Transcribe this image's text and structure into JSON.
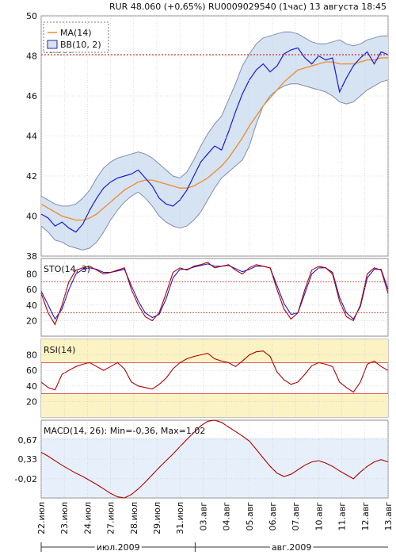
{
  "header": "RUR 48.060 (+0,65%)    RU0009029540 (1час) 13 августа 18:45",
  "colors": {
    "price": "#1a1ad8",
    "ma": "#f08a2c",
    "band_fill": "#d6e3f2",
    "band_edge": "#7f8ea6",
    "osc": "#b00000",
    "stoch_d": "#1a1ad8",
    "level": "#cc0000",
    "rsi_band": "#fbf3c4",
    "macd_fill": "#e7f0fa",
    "grid": "#c8c8c8"
  },
  "chart_data": [
    {
      "type": "line",
      "panel": "price",
      "ylim": [
        38,
        50
      ],
      "yticks": [
        "38",
        "40",
        "42",
        "44",
        "46",
        "48",
        "50"
      ],
      "last_price_label": "48.060",
      "last_price": 48.06,
      "legend": [
        "MA(14)",
        "BB(10, 2)"
      ],
      "series": [
        {
          "name": "price",
          "values": [
            40.1,
            39.9,
            39.5,
            39.7,
            39.4,
            39.2,
            39.6,
            40.3,
            40.9,
            41.4,
            41.7,
            41.9,
            42.0,
            42.1,
            42.3,
            41.9,
            41.5,
            40.9,
            40.6,
            40.5,
            40.8,
            41.3,
            42.0,
            42.7,
            43.1,
            43.5,
            43.3,
            44.2,
            45.2,
            46.1,
            46.8,
            47.3,
            47.6,
            47.2,
            47.5,
            48.1,
            48.3,
            48.4,
            47.9,
            47.6,
            48.0,
            47.8,
            47.9,
            46.2,
            46.9,
            47.5,
            47.9,
            48.2,
            47.6,
            48.2,
            48.06
          ]
        },
        {
          "name": "MA(14)",
          "values": [
            40.6,
            40.4,
            40.2,
            40.0,
            39.9,
            39.8,
            39.8,
            39.9,
            40.1,
            40.4,
            40.7,
            41.0,
            41.3,
            41.5,
            41.7,
            41.8,
            41.8,
            41.7,
            41.6,
            41.5,
            41.4,
            41.4,
            41.5,
            41.7,
            41.9,
            42.2,
            42.5,
            42.9,
            43.4,
            43.9,
            44.5,
            45.0,
            45.5,
            45.9,
            46.3,
            46.7,
            47.0,
            47.3,
            47.4,
            47.5,
            47.6,
            47.7,
            47.7,
            47.6,
            47.6,
            47.6,
            47.7,
            47.8,
            47.8,
            47.9,
            47.9
          ]
        },
        {
          "name": "BB upper",
          "values": [
            41.0,
            40.8,
            40.6,
            40.5,
            40.5,
            40.6,
            40.9,
            41.3,
            41.9,
            42.4,
            42.7,
            42.9,
            43.0,
            43.1,
            43.2,
            43.1,
            42.9,
            42.6,
            42.3,
            42.0,
            41.9,
            42.2,
            42.8,
            43.5,
            44.1,
            44.6,
            45.0,
            45.8,
            46.6,
            47.5,
            48.1,
            48.6,
            48.9,
            49.0,
            49.1,
            49.2,
            49.2,
            49.1,
            48.9,
            48.7,
            48.6,
            48.6,
            48.7,
            48.8,
            48.6,
            48.5,
            48.6,
            48.8,
            48.9,
            49.0,
            49.0
          ]
        },
        {
          "name": "BB lower",
          "values": [
            39.5,
            39.2,
            38.8,
            38.7,
            38.5,
            38.4,
            38.3,
            38.4,
            38.7,
            39.2,
            39.8,
            40.3,
            40.7,
            41.0,
            41.2,
            40.9,
            40.5,
            40.0,
            39.7,
            39.5,
            39.4,
            39.5,
            39.8,
            40.2,
            40.8,
            41.4,
            41.9,
            42.2,
            42.5,
            42.8,
            43.5,
            44.6,
            45.5,
            46.0,
            46.3,
            46.5,
            46.6,
            46.6,
            46.5,
            46.4,
            46.3,
            46.2,
            46.0,
            45.7,
            45.6,
            45.7,
            46.0,
            46.3,
            46.5,
            46.7,
            46.8
          ]
        }
      ]
    },
    {
      "type": "line",
      "panel": "stochastic",
      "title": "STO(14, 3)",
      "ylim": [
        0,
        100
      ],
      "yticks": [
        "20",
        "40",
        "60",
        "80"
      ],
      "levels": [
        30,
        70
      ],
      "series": [
        {
          "name": "%K",
          "values": [
            55,
            30,
            15,
            40,
            70,
            85,
            88,
            90,
            85,
            80,
            82,
            85,
            88,
            60,
            40,
            25,
            20,
            30,
            55,
            82,
            88,
            85,
            90,
            92,
            95,
            88,
            90,
            92,
            85,
            80,
            88,
            92,
            90,
            88,
            60,
            35,
            22,
            30,
            60,
            85,
            90,
            88,
            80,
            45,
            25,
            20,
            40,
            80,
            88,
            85,
            55
          ]
        },
        {
          "name": "%D",
          "values": [
            58,
            40,
            22,
            35,
            60,
            80,
            86,
            88,
            86,
            82,
            82,
            84,
            86,
            65,
            45,
            30,
            24,
            28,
            48,
            75,
            86,
            86,
            89,
            91,
            93,
            90,
            90,
            91,
            87,
            83,
            86,
            90,
            90,
            88,
            65,
            42,
            28,
            30,
            55,
            80,
            88,
            88,
            82,
            50,
            30,
            22,
            38,
            75,
            86,
            86,
            60
          ]
        }
      ]
    },
    {
      "type": "line",
      "panel": "rsi",
      "title": "RSI(14)",
      "ylim": [
        0,
        100
      ],
      "yticks": [
        "20",
        "40",
        "60",
        "80"
      ],
      "levels": [
        30,
        70
      ],
      "series": [
        {
          "name": "RSI(14)",
          "values": [
            45,
            38,
            35,
            55,
            60,
            65,
            68,
            70,
            65,
            60,
            65,
            70,
            62,
            45,
            40,
            38,
            36,
            42,
            50,
            62,
            70,
            75,
            78,
            80,
            82,
            75,
            72,
            70,
            65,
            72,
            80,
            84,
            85,
            78,
            58,
            48,
            42,
            45,
            55,
            66,
            70,
            68,
            65,
            45,
            38,
            32,
            45,
            68,
            72,
            65,
            60
          ]
        }
      ]
    },
    {
      "type": "area",
      "panel": "macd",
      "title": "MACD(14, 26): Min=-0,36, Max=1,02",
      "ylim": [
        -0.36,
        1.02
      ],
      "yticks": [
        "0,67",
        "0,33",
        "-0,02"
      ],
      "series": [
        {
          "name": "MACD(14, 26)",
          "values": [
            0.45,
            0.38,
            0.3,
            0.22,
            0.15,
            0.08,
            0.02,
            -0.05,
            -0.12,
            -0.2,
            -0.28,
            -0.34,
            -0.36,
            -0.3,
            -0.2,
            -0.08,
            0.05,
            0.18,
            0.3,
            0.42,
            0.55,
            0.68,
            0.8,
            0.92,
            1.0,
            1.02,
            0.98,
            0.9,
            0.82,
            0.74,
            0.65,
            0.5,
            0.35,
            0.2,
            0.08,
            0.02,
            0.06,
            0.14,
            0.22,
            0.28,
            0.3,
            0.26,
            0.2,
            0.12,
            0.05,
            -0.02,
            0.1,
            0.2,
            0.28,
            0.32,
            0.28
          ]
        }
      ]
    }
  ],
  "x_axis": {
    "dates": [
      "22.июл",
      "23.июл",
      "24.июл",
      "27.июл",
      "28.июл",
      "29.июл",
      "31.июл",
      "03.авг",
      "04.авг",
      "05.авг",
      "06.авг",
      "07.авг",
      "10.авг",
      "11.авг",
      "12.авг",
      "13.авг"
    ],
    "months": [
      "июл.2009",
      "авг.2009"
    ]
  }
}
